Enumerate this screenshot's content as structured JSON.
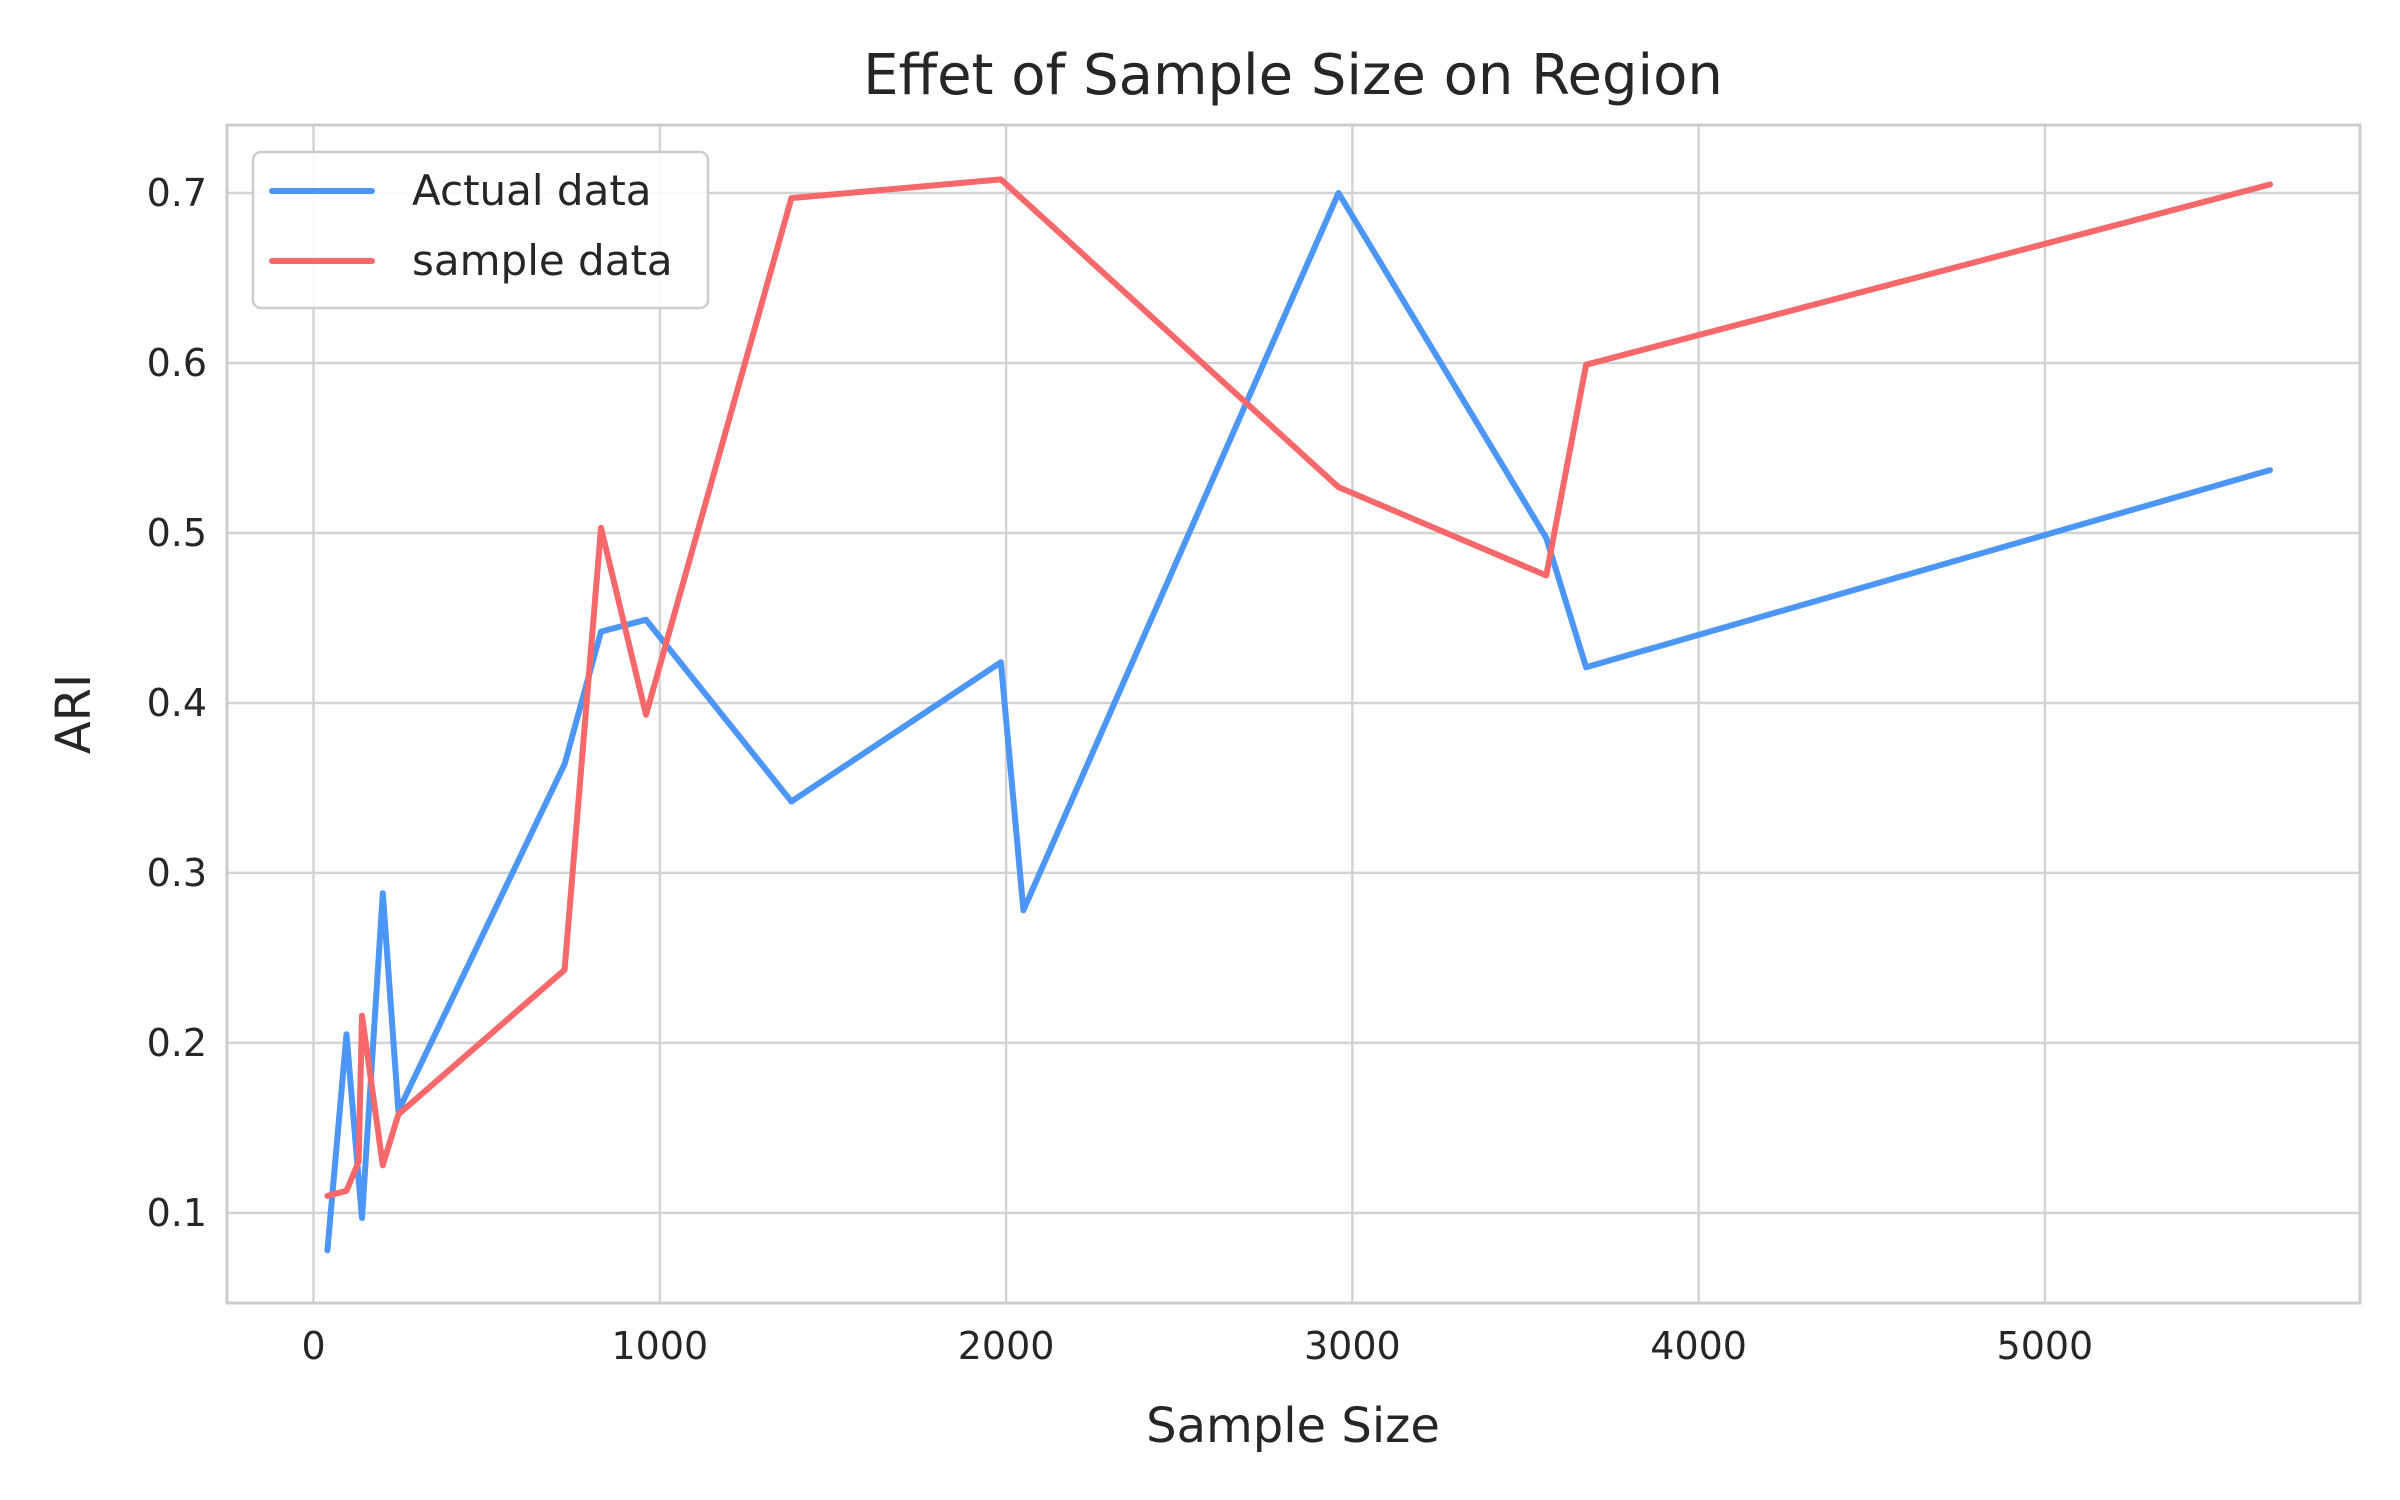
{
  "chart_data": {
    "type": "line",
    "title": "Effet of Sample Size on Region",
    "xlabel": "Sample Size",
    "ylabel": "ARI",
    "xlim": [
      -250,
      5910
    ],
    "ylim": [
      0.047,
      0.74
    ],
    "xticks": [
      0,
      1000,
      2000,
      3000,
      4000,
      5000
    ],
    "yticks": [
      0.1,
      0.2,
      0.3,
      0.4,
      0.5,
      0.6,
      0.7
    ],
    "grid": true,
    "legend_position": "top-left",
    "series": [
      {
        "name": "Actual data",
        "color": "#4c96f7",
        "x": [
          40,
          95,
          130,
          140,
          200,
          245,
          725,
          830,
          960,
          1380,
          1985,
          2050,
          2960,
          3560,
          3675,
          5650
        ],
        "y": [
          0.078,
          0.205,
          0.12,
          0.097,
          0.288,
          0.16,
          0.364,
          0.442,
          0.449,
          0.342,
          0.424,
          0.278,
          0.7,
          0.497,
          0.421,
          0.537
        ]
      },
      {
        "name": "sample data",
        "color": "#f7686a",
        "x": [
          40,
          95,
          130,
          140,
          200,
          245,
          725,
          830,
          960,
          1380,
          1985,
          2960,
          3560,
          3675,
          5650
        ],
        "y": [
          0.11,
          0.113,
          0.13,
          0.216,
          0.128,
          0.158,
          0.243,
          0.503,
          0.393,
          0.697,
          0.708,
          0.527,
          0.475,
          0.599,
          0.705
        ]
      }
    ]
  }
}
